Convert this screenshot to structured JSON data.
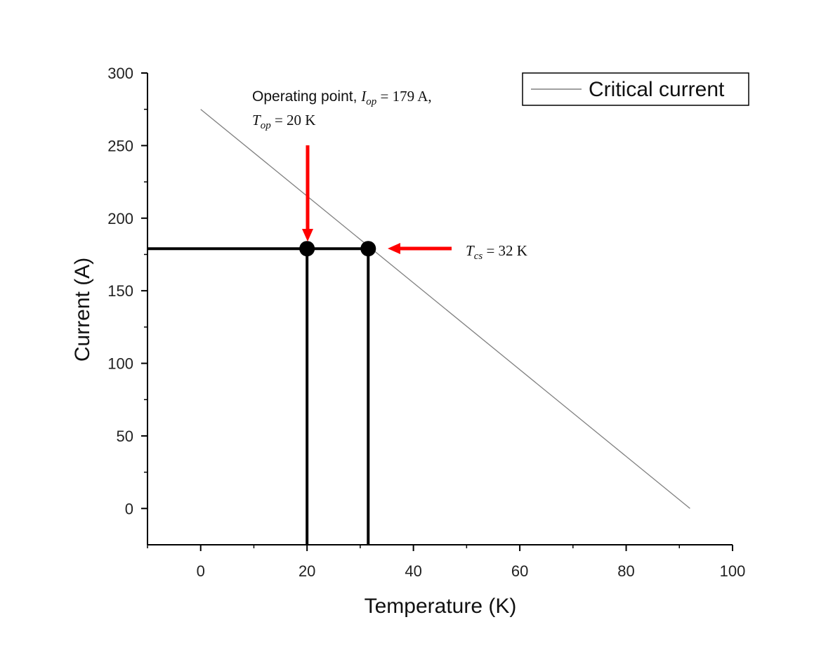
{
  "chart_data": {
    "type": "line",
    "xlabel": "Temperature (K)",
    "ylabel": "Current (A)",
    "xlim": [
      -10,
      100
    ],
    "ylim": [
      -25,
      300
    ],
    "xticks": [
      0,
      20,
      40,
      60,
      80,
      100
    ],
    "yticks": [
      0,
      50,
      100,
      150,
      200,
      250,
      300
    ],
    "legend": {
      "position": "top-right",
      "entries": [
        "Critical current"
      ]
    },
    "series": [
      {
        "name": "Critical current",
        "x": [
          0,
          92
        ],
        "y": [
          275,
          0
        ],
        "color": "#808080"
      }
    ],
    "reference_lines": {
      "horizontal_current": 179,
      "vertical_temperatures": [
        20,
        32
      ]
    },
    "points": [
      {
        "x": 20,
        "y": 179
      },
      {
        "x": 31.5,
        "y": 179
      }
    ],
    "annotations": {
      "operating_point": {
        "line1_prefix": "Operating point, ",
        "i_symbol": "I",
        "i_subscript": "op",
        "i_value": " = 179 A,",
        "t_symbol": "T",
        "t_subscript": "op",
        "t_value": " = 20 K",
        "arrow_color": "#ff0000"
      },
      "tcs": {
        "symbol": "T",
        "subscript": "cs",
        "value": " = 32 K",
        "arrow_color": "#ff0000"
      }
    }
  }
}
